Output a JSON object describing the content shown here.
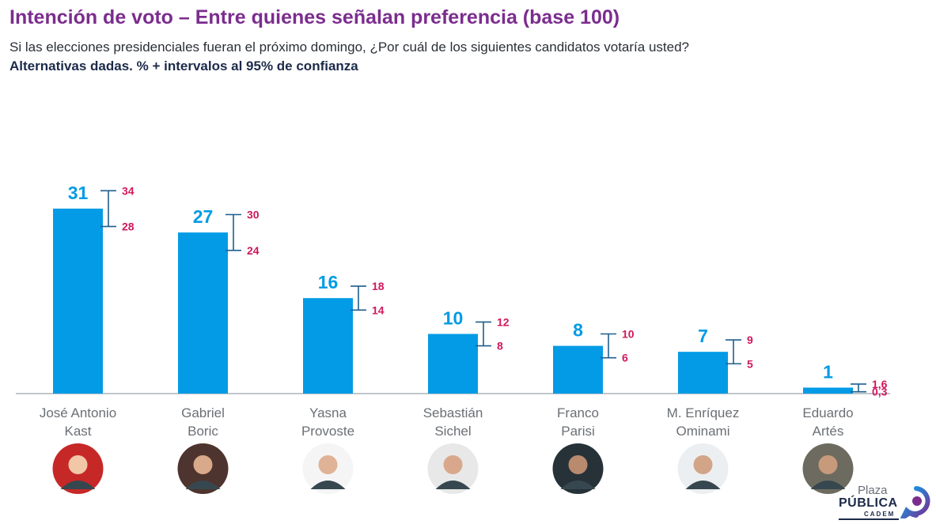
{
  "title": "Intención de voto – Entre quienes señalan preferencia (base 100)",
  "subtitle": "Si las elecciones presidenciales fueran el próximo domingo, ¿Por cuál de los siguientes candidatos votaría usted?",
  "note": "Alternativas dadas. % + intervalos al 95% de confianza",
  "colors": {
    "bar": "#039be5",
    "value_label": "#039be5",
    "ci_label": "#d0175c",
    "title": "#7b2d8e",
    "axis": "#9aa3ad",
    "category": "#6b6f75"
  },
  "chart_data": {
    "type": "bar",
    "title": "Intención de voto – Entre quienes señalan preferencia (base 100)",
    "categories": [
      [
        "José Antonio",
        "Kast"
      ],
      [
        "Gabriel",
        "Boric"
      ],
      [
        "Yasna",
        "Provoste"
      ],
      [
        "Sebastián",
        "Sichel"
      ],
      [
        "Franco",
        "Parisi"
      ],
      [
        "M. Enríquez",
        "Ominami"
      ],
      [
        "Eduardo",
        "Artés"
      ]
    ],
    "values": [
      31,
      27,
      16,
      10,
      8,
      7,
      1
    ],
    "value_labels": [
      "31",
      "27",
      "16",
      "10",
      "8",
      "7",
      "1"
    ],
    "ci_low": [
      28,
      24,
      14,
      8,
      6,
      5,
      0.3
    ],
    "ci_high": [
      34,
      30,
      18,
      12,
      10,
      9,
      1.6
    ],
    "ci_low_labels": [
      "28",
      "24",
      "14",
      "8",
      "6",
      "5",
      "0,3"
    ],
    "ci_high_labels": [
      "34",
      "30",
      "18",
      "12",
      "10",
      "9",
      "1,6"
    ],
    "ylim": [
      0,
      36
    ],
    "grid": false
  },
  "logo": {
    "line1": "Plaza",
    "line2": "PÚBLICA",
    "line3": "CADEM"
  }
}
